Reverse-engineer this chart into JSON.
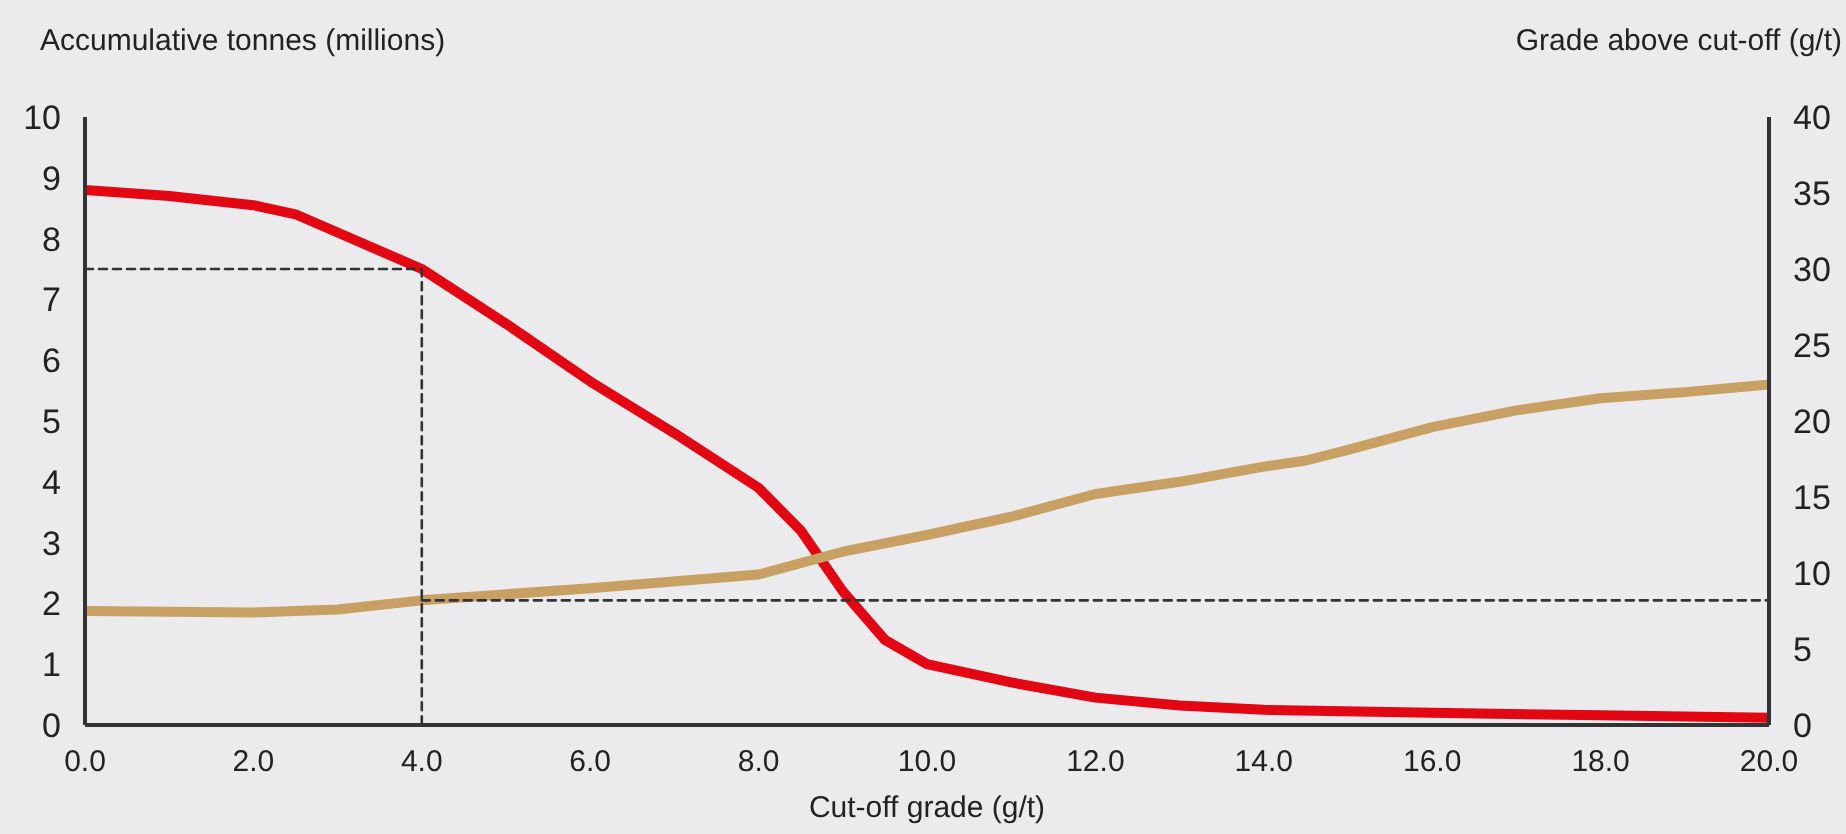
{
  "chart_data": {
    "type": "line",
    "xlabel": "Cut-off grade (g/t)",
    "ylabel": "Accumulative tonnes (millions)",
    "y2label": "Grade above cut-off (g/t)",
    "xlim": [
      0,
      20
    ],
    "xticks": [
      {
        "value": 0,
        "label": "0.0"
      },
      {
        "value": 2,
        "label": "2.0"
      },
      {
        "value": 4,
        "label": "4.0"
      },
      {
        "value": 6,
        "label": "6.0"
      },
      {
        "value": 8,
        "label": "8.0"
      },
      {
        "value": 10,
        "label": "10.0"
      },
      {
        "value": 12,
        "label": "12.0"
      },
      {
        "value": 14,
        "label": "14.0"
      },
      {
        "value": 16,
        "label": "16.0"
      },
      {
        "value": 18,
        "label": "18.0"
      },
      {
        "value": 20,
        "label": "20.0"
      }
    ],
    "ylim": [
      0,
      10
    ],
    "yticks": [
      0,
      1,
      2,
      3,
      4,
      5,
      6,
      7,
      8,
      9,
      10
    ],
    "y2lim": [
      0,
      40
    ],
    "y2ticks": [
      0,
      5,
      10,
      15,
      20,
      25,
      30,
      35,
      40
    ],
    "grid": false,
    "line_style": "solid",
    "series": [
      {
        "color": "#e30613",
        "x": [
          0,
          1,
          2,
          2.5,
          3,
          4,
          5,
          6,
          7,
          8,
          8.5,
          9,
          9.5,
          10,
          11,
          12,
          13,
          14,
          16,
          18,
          20
        ],
        "values": [
          8.8,
          8.7,
          8.55,
          8.4,
          8.1,
          7.5,
          6.6,
          5.65,
          4.8,
          3.9,
          3.2,
          2.2,
          1.4,
          1.0,
          0.7,
          0.45,
          0.32,
          0.25,
          0.2,
          0.16,
          0.12
        ]
      },
      {
        "color": "#c9a063",
        "axis": "y2",
        "x": [
          0,
          2,
          3,
          4,
          6,
          8,
          9,
          10,
          11,
          12,
          13,
          14,
          14.5,
          15,
          16,
          17,
          18,
          19,
          20
        ],
        "values": [
          7.5,
          7.4,
          7.6,
          8.2,
          9.0,
          9.9,
          11.4,
          12.5,
          13.7,
          15.2,
          16.0,
          17.0,
          17.4,
          18.1,
          19.6,
          20.7,
          21.5,
          21.9,
          22.4
        ]
      },
      {
        "color": "#333333",
        "line_style": "dashed",
        "x": [
          0,
          4,
          4
        ],
        "values": [
          7.5,
          7.5,
          0
        ]
      },
      {
        "color": "#333333",
        "line_style": "dashed",
        "axis": "y2",
        "x": [
          4,
          20
        ],
        "values": [
          8.2,
          8.2
        ]
      }
    ]
  }
}
